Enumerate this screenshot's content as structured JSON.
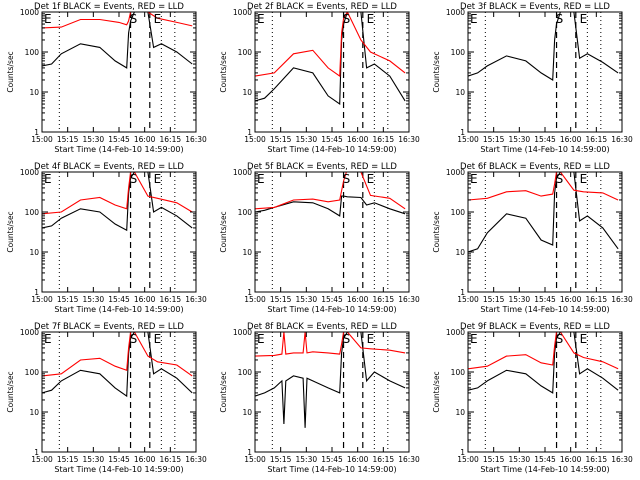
{
  "colors": {
    "events": "#000000",
    "lld": "#ff0000",
    "axes": "#000000",
    "background": "#ffffff"
  },
  "shared": {
    "x_ticks": [
      "15:00",
      "15:15",
      "15:30",
      "15:45",
      "16:00",
      "16:15",
      "16:30"
    ],
    "y_ticks": [
      "1",
      "10",
      "100",
      "1000"
    ],
    "ylabel": "Counts/sec",
    "xlabel": "Start Time (14-Feb-10 14:59:00)",
    "marker_labels": [
      "E",
      "S",
      "E"
    ]
  },
  "chart_data": [
    {
      "type": "line",
      "title": "Det 1f BLACK = Events, RED = LLD",
      "y_scale": "log",
      "ylim": [
        1,
        1000
      ],
      "series": [
        {
          "name": "Events",
          "x": [
            0,
            5,
            10,
            20,
            30,
            38,
            44,
            45,
            46,
            48,
            55,
            58,
            62,
            70,
            78
          ],
          "y": [
            45,
            50,
            90,
            160,
            130,
            60,
            40,
            300,
            600,
            1000,
            1000,
            130,
            160,
            100,
            50
          ]
        },
        {
          "name": "LLD",
          "x": [
            0,
            10,
            20,
            30,
            40,
            44,
            45,
            46,
            48,
            55,
            60,
            70,
            78
          ],
          "y": [
            400,
            420,
            650,
            650,
            550,
            480,
            600,
            1000,
            1000,
            1000,
            700,
            550,
            450
          ]
        }
      ]
    },
    {
      "type": "line",
      "title": "Det 2f BLACK = Events, RED = LLD",
      "y_scale": "log",
      "ylim": [
        1,
        1000
      ],
      "series": [
        {
          "name": "Events",
          "x": [
            0,
            5,
            10,
            20,
            30,
            38,
            44,
            45,
            46,
            48,
            55,
            58,
            62,
            70,
            78
          ],
          "y": [
            6,
            7,
            12,
            40,
            30,
            8,
            5,
            200,
            500,
            1000,
            1000,
            40,
            50,
            25,
            6
          ]
        },
        {
          "name": "LLD",
          "x": [
            0,
            10,
            20,
            30,
            38,
            44,
            45,
            46,
            48,
            55,
            60,
            70,
            78
          ],
          "y": [
            25,
            30,
            90,
            110,
            40,
            25,
            300,
            700,
            1000,
            200,
            100,
            60,
            30
          ]
        }
      ]
    },
    {
      "type": "line",
      "title": "Det 3f BLACK = Events, RED = LLD",
      "y_scale": "log",
      "ylim": [
        1,
        1000
      ],
      "series": [
        {
          "name": "Events",
          "x": [
            0,
            5,
            10,
            20,
            30,
            38,
            44,
            45,
            46,
            48,
            55,
            58,
            62,
            70,
            78
          ],
          "y": [
            25,
            30,
            45,
            80,
            60,
            30,
            20,
            200,
            500,
            1000,
            1000,
            70,
            90,
            55,
            30
          ]
        },
        {
          "name": "LLD",
          "x": [],
          "y": []
        }
      ]
    },
    {
      "type": "line",
      "title": "Det 4f BLACK = Events, RED = LLD",
      "y_scale": "log",
      "ylim": [
        1,
        1000
      ],
      "series": [
        {
          "name": "Events",
          "x": [
            0,
            5,
            10,
            20,
            30,
            38,
            44,
            45,
            46,
            48,
            55,
            58,
            62,
            70,
            78
          ],
          "y": [
            40,
            45,
            70,
            120,
            100,
            50,
            35,
            300,
            700,
            1000,
            1000,
            100,
            130,
            80,
            40
          ]
        },
        {
          "name": "LLD",
          "x": [
            0,
            10,
            20,
            30,
            38,
            44,
            45,
            46,
            48,
            55,
            60,
            70,
            78
          ],
          "y": [
            90,
            100,
            200,
            230,
            150,
            120,
            400,
            1000,
            1000,
            250,
            220,
            170,
            100
          ]
        }
      ]
    },
    {
      "type": "line",
      "title": "Det 5f BLACK = Events, RED = LLD",
      "y_scale": "log",
      "ylim": [
        1,
        1000
      ],
      "series": [
        {
          "name": "Events",
          "x": [
            0,
            5,
            10,
            20,
            30,
            38,
            44,
            45,
            46,
            48,
            55,
            58,
            62,
            70,
            78
          ],
          "y": [
            100,
            110,
            130,
            180,
            170,
            120,
            80,
            250,
            250,
            240,
            230,
            150,
            170,
            120,
            90
          ]
        },
        {
          "name": "LLD",
          "x": [
            0,
            10,
            20,
            30,
            38,
            44,
            46,
            48,
            52,
            55,
            60,
            70,
            78
          ],
          "y": [
            120,
            130,
            200,
            210,
            180,
            200,
            600,
            2000,
            3000,
            1000,
            260,
            220,
            120
          ]
        }
      ]
    },
    {
      "type": "line",
      "title": "Det 6f BLACK = Events, RED = LLD",
      "y_scale": "log",
      "ylim": [
        1,
        1000
      ],
      "series": [
        {
          "name": "Events",
          "x": [
            0,
            5,
            10,
            20,
            30,
            38,
            44,
            45,
            46,
            48,
            55,
            58,
            62,
            70,
            78
          ],
          "y": [
            10,
            12,
            30,
            90,
            70,
            20,
            15,
            300,
            700,
            1000,
            1000,
            60,
            80,
            40,
            12
          ]
        },
        {
          "name": "LLD",
          "x": [
            0,
            10,
            20,
            30,
            38,
            44,
            45,
            46,
            48,
            55,
            60,
            70,
            78
          ],
          "y": [
            200,
            220,
            320,
            340,
            250,
            280,
            500,
            1000,
            1000,
            350,
            320,
            300,
            200
          ]
        }
      ]
    },
    {
      "type": "line",
      "title": "Det 7f BLACK = Events, RED = LLD",
      "y_scale": "log",
      "ylim": [
        1,
        1000
      ],
      "series": [
        {
          "name": "Events",
          "x": [
            0,
            5,
            10,
            20,
            30,
            38,
            44,
            45,
            46,
            48,
            55,
            58,
            62,
            70,
            78
          ],
          "y": [
            30,
            35,
            60,
            110,
            90,
            40,
            25,
            300,
            700,
            1000,
            1000,
            90,
            120,
            70,
            30
          ]
        },
        {
          "name": "LLD",
          "x": [
            0,
            10,
            20,
            30,
            38,
            44,
            45,
            46,
            48,
            55,
            60,
            70,
            78
          ],
          "y": [
            80,
            90,
            200,
            220,
            140,
            110,
            400,
            1000,
            1000,
            250,
            180,
            150,
            80
          ]
        }
      ]
    },
    {
      "type": "line",
      "title": "Det 8f BLACK = Events, RED = LLD",
      "y_scale": "log",
      "ylim": [
        1,
        1000
      ],
      "series": [
        {
          "name": "Events",
          "x": [
            0,
            5,
            10,
            14,
            15,
            16,
            20,
            25,
            26,
            27,
            30,
            38,
            44,
            45,
            46,
            48,
            55,
            58,
            62,
            70,
            78
          ],
          "y": [
            25,
            30,
            40,
            60,
            5,
            60,
            80,
            70,
            4,
            70,
            60,
            40,
            30,
            300,
            700,
            1000,
            1000,
            60,
            100,
            60,
            40
          ]
        },
        {
          "name": "LLD",
          "x": [
            0,
            10,
            14,
            15,
            16,
            20,
            25,
            26,
            27,
            30,
            38,
            44,
            45,
            46,
            48,
            55,
            60,
            70,
            78
          ],
          "y": [
            250,
            260,
            280,
            1000,
            280,
            300,
            300,
            1000,
            300,
            320,
            300,
            280,
            500,
            1000,
            1000,
            400,
            380,
            350,
            300
          ]
        }
      ]
    },
    {
      "type": "line",
      "title": "Det 9f BLACK = Events, RED = LLD",
      "y_scale": "log",
      "ylim": [
        1,
        1000
      ],
      "series": [
        {
          "name": "Events",
          "x": [
            0,
            5,
            10,
            20,
            30,
            38,
            44,
            45,
            46,
            48,
            55,
            58,
            62,
            70,
            78
          ],
          "y": [
            35,
            40,
            60,
            110,
            90,
            45,
            30,
            300,
            700,
            1000,
            1000,
            90,
            120,
            70,
            35
          ]
        },
        {
          "name": "LLD",
          "x": [
            0,
            10,
            20,
            30,
            38,
            44,
            45,
            46,
            48,
            55,
            60,
            70,
            78
          ],
          "y": [
            120,
            140,
            250,
            270,
            170,
            150,
            450,
            1000,
            1000,
            300,
            230,
            180,
            120
          ]
        }
      ]
    }
  ]
}
